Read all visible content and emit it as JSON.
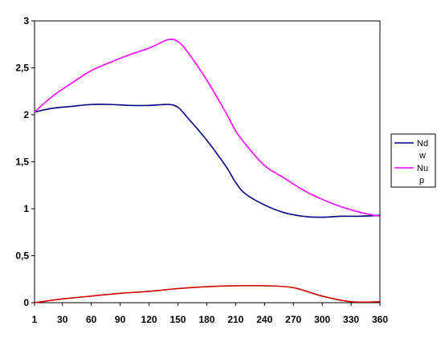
{
  "chart_data": {
    "type": "line",
    "title": "",
    "xlabel": "",
    "ylabel": "",
    "xlim": [
      1,
      360
    ],
    "ylim": [
      0,
      3
    ],
    "x_ticks": [
      1,
      30,
      60,
      90,
      120,
      150,
      180,
      210,
      240,
      270,
      300,
      330,
      360
    ],
    "x_tick_labels": [
      "1",
      "30",
      "60",
      "90",
      "120",
      "150",
      "180",
      "210",
      "240",
      "270",
      "300",
      "330",
      "360"
    ],
    "y_ticks": [
      0,
      0.5,
      1,
      1.5,
      2,
      2.5,
      3
    ],
    "y_tick_labels": [
      "0",
      "0,5",
      "1",
      "1,5",
      "2",
      "2,5",
      "3"
    ],
    "grid": false,
    "legend_position": "right",
    "series": [
      {
        "name": "Nd\nw",
        "legend_lines": [
          "Nd",
          "w"
        ],
        "color": "#000080",
        "x": [
          1,
          20,
          40,
          60,
          80,
          100,
          120,
          140,
          150,
          160,
          180,
          200,
          210,
          220,
          240,
          260,
          280,
          300,
          320,
          340,
          360
        ],
        "y": [
          2.03,
          2.07,
          2.09,
          2.11,
          2.11,
          2.1,
          2.1,
          2.11,
          2.08,
          1.97,
          1.73,
          1.45,
          1.28,
          1.16,
          1.04,
          0.96,
          0.92,
          0.91,
          0.92,
          0.92,
          0.93
        ]
      },
      {
        "name": "Nu\np",
        "legend_lines": [
          "Nu",
          "p"
        ],
        "color": "#ff00ff",
        "x": [
          1,
          20,
          40,
          60,
          80,
          100,
          120,
          140,
          150,
          160,
          180,
          200,
          210,
          220,
          240,
          260,
          280,
          300,
          320,
          340,
          360
        ],
        "y": [
          2.03,
          2.2,
          2.34,
          2.47,
          2.56,
          2.64,
          2.71,
          2.8,
          2.78,
          2.67,
          2.37,
          2.02,
          1.83,
          1.69,
          1.46,
          1.33,
          1.2,
          1.1,
          1.02,
          0.96,
          0.92
        ]
      },
      {
        "name": "",
        "color": "#cc0000",
        "x": [
          1,
          30,
          60,
          90,
          120,
          150,
          180,
          210,
          240,
          270,
          300,
          330,
          360
        ],
        "y": [
          0.0,
          0.04,
          0.07,
          0.1,
          0.12,
          0.15,
          0.17,
          0.18,
          0.18,
          0.16,
          0.07,
          0.01,
          0.01
        ]
      }
    ]
  }
}
